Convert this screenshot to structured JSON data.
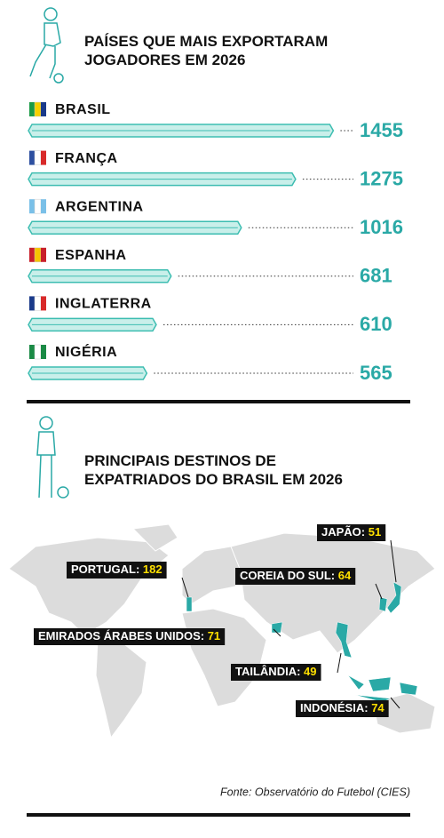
{
  "chart_data": [
    {
      "type": "bar",
      "title": "PAÍSES QUE MAIS EXPORTARAM JOGADORES EM 2026",
      "categories": [
        "BRASIL",
        "FRANÇA",
        "ARGENTINA",
        "ESPANHA",
        "INGLATERRA",
        "NIGÉRIA"
      ],
      "values": [
        1455,
        1275,
        1016,
        681,
        610,
        565
      ],
      "color": "#3dbdb1",
      "xlim": [
        0,
        1500
      ]
    },
    {
      "type": "map",
      "title": "PRINCIPAIS DESTINOS DE EXPATRIADOS DO BRASIL EM 2026",
      "categories": [
        "JAPÃO:",
        "PORTUGAL:",
        "COREIA DO SUL:",
        "EMIRADOS ÁRABES UNIDOS:",
        "TAILÂNDIA:",
        "INDONÉSIA:"
      ],
      "values": [
        51,
        182,
        64,
        71,
        49,
        74
      ],
      "color": "#2aa9a6"
    }
  ],
  "source": "Fonte: Observatório do Futebol (CIES)"
}
